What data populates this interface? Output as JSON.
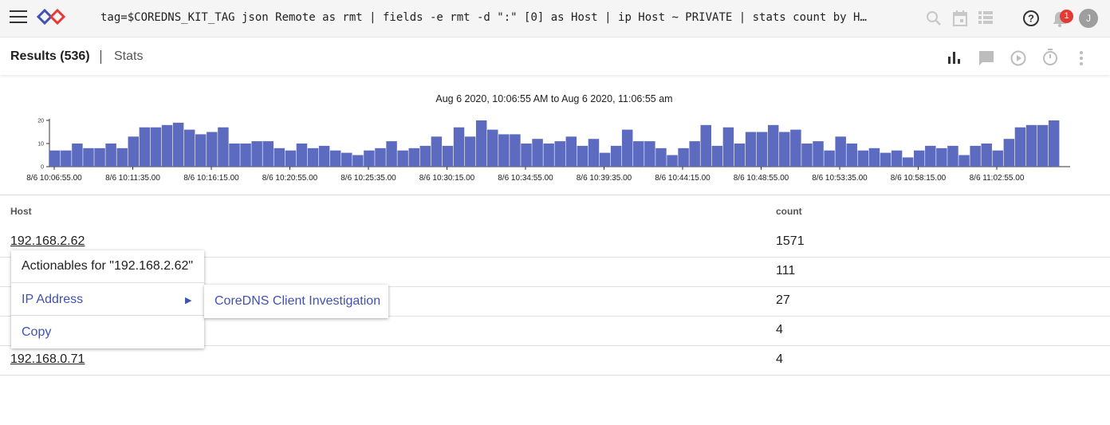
{
  "query": "tag=$COREDNS_KIT_TAG json Remote as rmt | fields -e rmt -d \":\" [0] as Host | ip Host ~ PRIVATE | stats count by Host",
  "toolbar_icons": [
    "search-icon",
    "calendar-icon",
    "table-view-icon",
    "help-icon",
    "bell-icon",
    "avatar"
  ],
  "notifications": {
    "count": "1"
  },
  "user": {
    "initial": "J"
  },
  "tabs": {
    "results": "Results (536)",
    "stats": "Stats"
  },
  "view_icons": [
    "bar-chart-icon",
    "comment-icon",
    "play-icon",
    "timer-icon",
    "more-vert-icon"
  ],
  "time_range": "Aug 6 2020, 10:06:55 AM to Aug 6 2020, 11:06:55 am",
  "chart_data": {
    "type": "bar",
    "title": "",
    "ylim": [
      0,
      20
    ],
    "y_ticks": [
      "20",
      "10",
      "0"
    ],
    "x_ticks": [
      "8/6 10:06:55.00",
      "8/6 10:11:35.00",
      "8/6 10:16:15.00",
      "8/6 10:20:55.00",
      "8/6 10:25:35.00",
      "8/6 10:30:15.00",
      "8/6 10:34:55.00",
      "8/6 10:39:35.00",
      "8/6 10:44:15.00",
      "8/6 10:48:55.00",
      "8/6 10:53:35.00",
      "8/6 10:58:15.00",
      "8/6 11:02:55.00"
    ],
    "bar_color": "#5c6bc0",
    "values": [
      7,
      7,
      10,
      8,
      8,
      10,
      8,
      13,
      17,
      17,
      18,
      19,
      16,
      14,
      15,
      17,
      10,
      10,
      11,
      11,
      8,
      7,
      10,
      8,
      9,
      7,
      6,
      5,
      7,
      8,
      11,
      7,
      8,
      9,
      13,
      9,
      17,
      13,
      20,
      16,
      14,
      14,
      10,
      12,
      10,
      11,
      13,
      9,
      12,
      6,
      9,
      16,
      11,
      11,
      8,
      5,
      8,
      11,
      18,
      9,
      17,
      10,
      15,
      15,
      18,
      15,
      16,
      10,
      11,
      7,
      13,
      10,
      7,
      8,
      6,
      7,
      4,
      7,
      9,
      8,
      9,
      5,
      9,
      10,
      7,
      12,
      17,
      18,
      18,
      20
    ]
  },
  "table": {
    "columns": [
      "Host",
      "count"
    ],
    "rows": [
      {
        "host": "192.168.2.62",
        "count": "1571"
      },
      {
        "host": "",
        "count": "111"
      },
      {
        "host": "",
        "count": "27"
      },
      {
        "host": "",
        "count": "4"
      },
      {
        "host": "192.168.0.71",
        "count": "4"
      }
    ]
  },
  "context_menu": {
    "title": "Actionables for \"192.168.2.62\"",
    "items": [
      "IP Address",
      "Copy"
    ],
    "submenu": {
      "items": [
        "CoreDNS Client Investigation"
      ]
    }
  }
}
